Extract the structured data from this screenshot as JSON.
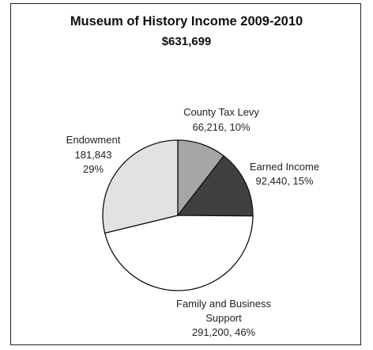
{
  "chart_data": {
    "type": "pie",
    "title": "Museum of History Income 2009-2010",
    "subtitle": "$631,699",
    "slices": [
      {
        "label": "County Tax Levy",
        "amount": "66,216",
        "percent": "10%",
        "value": 66216,
        "color": "#a6a6a6"
      },
      {
        "label": "Earned Income",
        "amount": "92,440",
        "percent": "15%",
        "value": 92440,
        "color": "#404040"
      },
      {
        "label": "Family and Business Support",
        "amount": "291,200",
        "percent": "46%",
        "value": 291200,
        "color": "#ffffff"
      },
      {
        "label": "Endowment",
        "amount": "181,843",
        "percent": "29%",
        "value": 181843,
        "color": "#e2e2e2"
      }
    ]
  }
}
